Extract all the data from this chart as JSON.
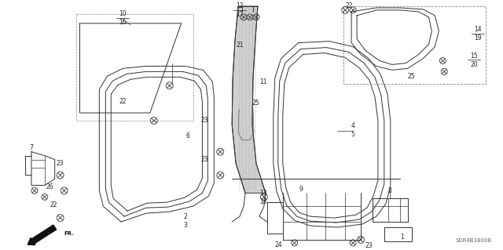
{
  "background_color": "#ffffff",
  "diagram_code": "SDR4B3800B",
  "fig_width": 6.4,
  "fig_height": 3.19,
  "line_color": "#333333",
  "label_color": "#222222",
  "label_fs": 5.5,
  "lw": 0.7
}
